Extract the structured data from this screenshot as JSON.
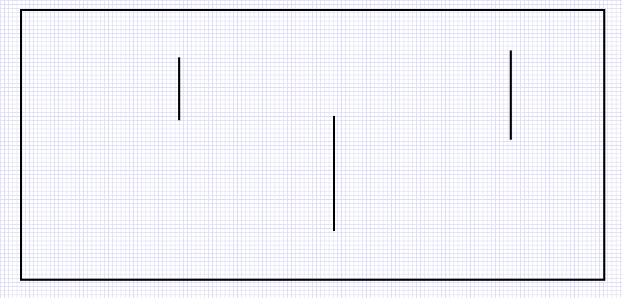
{
  "diagram": {
    "background": "grid-paper",
    "grid_color": "#dcdcf7",
    "stroke_color": "#000000",
    "frame": {
      "shape": "rectangle"
    },
    "segments": [
      {
        "orientation": "vertical"
      },
      {
        "orientation": "vertical"
      },
      {
        "orientation": "vertical"
      }
    ]
  }
}
